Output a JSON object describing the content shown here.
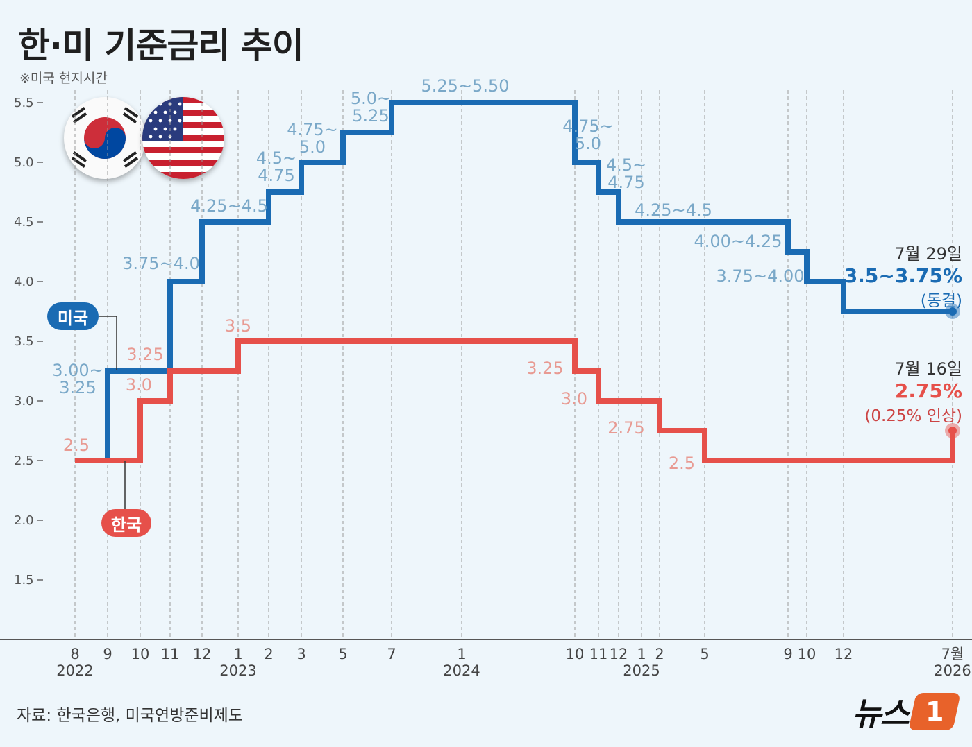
{
  "title": "한·미 기준금리 추이",
  "note": "※미국 현지시간",
  "source": "자료: 한국은행, 미국연방준비제도",
  "logo": {
    "text": "뉴스",
    "badge": "1"
  },
  "colors": {
    "us": "#1a6bb3",
    "kr": "#e6504a",
    "us_label": "#7aa8c8",
    "kr_label": "#e89a92",
    "axis": "#444",
    "grid": "#aaa"
  },
  "legend": {
    "us": "미국",
    "kr": "한국"
  },
  "annotations": {
    "us": {
      "date": "7월 29일",
      "value": "3.5~3.75%",
      "sub": "(동결)"
    },
    "kr": {
      "date": "7월 16일",
      "value": "2.75%",
      "sub": "(0.25% 인상)"
    }
  },
  "chart_data": {
    "type": "line",
    "step": true,
    "title": "한·미 기준금리 추이",
    "ylim": [
      1.5,
      5.5
    ],
    "yticks": [
      "1.5",
      "2.0",
      "2.5",
      "3.0",
      "3.5",
      "4.0",
      "4.5",
      "5.0",
      "5.5"
    ],
    "xticks": [
      {
        "label": "8",
        "year": "2022"
      },
      {
        "label": "9"
      },
      {
        "label": "10"
      },
      {
        "label": "11"
      },
      {
        "label": "12"
      },
      {
        "label": "1",
        "year": "2023"
      },
      {
        "label": "2"
      },
      {
        "label": "3"
      },
      {
        "label": "5"
      },
      {
        "label": "7"
      },
      {
        "label": "1",
        "year": "2024"
      },
      {
        "label": "10"
      },
      {
        "label": "11"
      },
      {
        "label": "12"
      },
      {
        "label": "1",
        "year": "2025"
      },
      {
        "label": "2"
      },
      {
        "label": "5"
      },
      {
        "label": "9"
      },
      {
        "label": "10"
      },
      {
        "label": "12"
      },
      {
        "label": "7월",
        "year": "2026"
      }
    ],
    "series": [
      {
        "name": "미국",
        "steps": [
          {
            "start": "2022-09",
            "value": 3.25,
            "label": "3.00~ 3.25"
          },
          {
            "start": "2022-11",
            "value": 4.0,
            "label": "3.75~4.0"
          },
          {
            "start": "2022-12",
            "value": 4.5,
            "label": "4.25~4.5"
          },
          {
            "start": "2023-02",
            "value": 4.75,
            "label": "4.5~ 4.75"
          },
          {
            "start": "2023-03",
            "value": 5.0,
            "label": "4.75~ 5.0"
          },
          {
            "start": "2023-05",
            "value": 5.25,
            "label": "5.0~ 5.25"
          },
          {
            "start": "2023-07",
            "value": 5.5,
            "label": "5.25~5.50"
          },
          {
            "start": "2024-10",
            "value": 5.0,
            "label": "4.75~ 5.0"
          },
          {
            "start": "2024-11",
            "value": 4.75,
            "label": "4.5~ 4.75"
          },
          {
            "start": "2024-12",
            "value": 4.5,
            "label": "4.25~4.5"
          },
          {
            "start": "2025-09",
            "value": 4.25,
            "label": "4.00~4.25"
          },
          {
            "start": "2025-10",
            "value": 4.0,
            "label": "3.75~4.00"
          },
          {
            "start": "2025-12",
            "value": 3.75,
            "label": ""
          }
        ],
        "start_value": 2.5,
        "end": "2026-07"
      },
      {
        "name": "한국",
        "steps": [
          {
            "start": "2022-08",
            "value": 2.5,
            "label": "2.5"
          },
          {
            "start": "2022-10",
            "value": 3.0,
            "label": "3.0"
          },
          {
            "start": "2022-11",
            "value": 3.25,
            "label": "3.25"
          },
          {
            "start": "2023-01",
            "value": 3.5,
            "label": "3.5"
          },
          {
            "start": "2024-10",
            "value": 3.25,
            "label": "3.25"
          },
          {
            "start": "2024-11",
            "value": 3.0,
            "label": "3.0"
          },
          {
            "start": "2025-02",
            "value": 2.75,
            "label": "2.75"
          },
          {
            "start": "2025-05",
            "value": 2.5,
            "label": "2.5"
          },
          {
            "start": "2026-07",
            "value": 2.75,
            "label": ""
          }
        ],
        "end": "2026-07"
      }
    ]
  }
}
